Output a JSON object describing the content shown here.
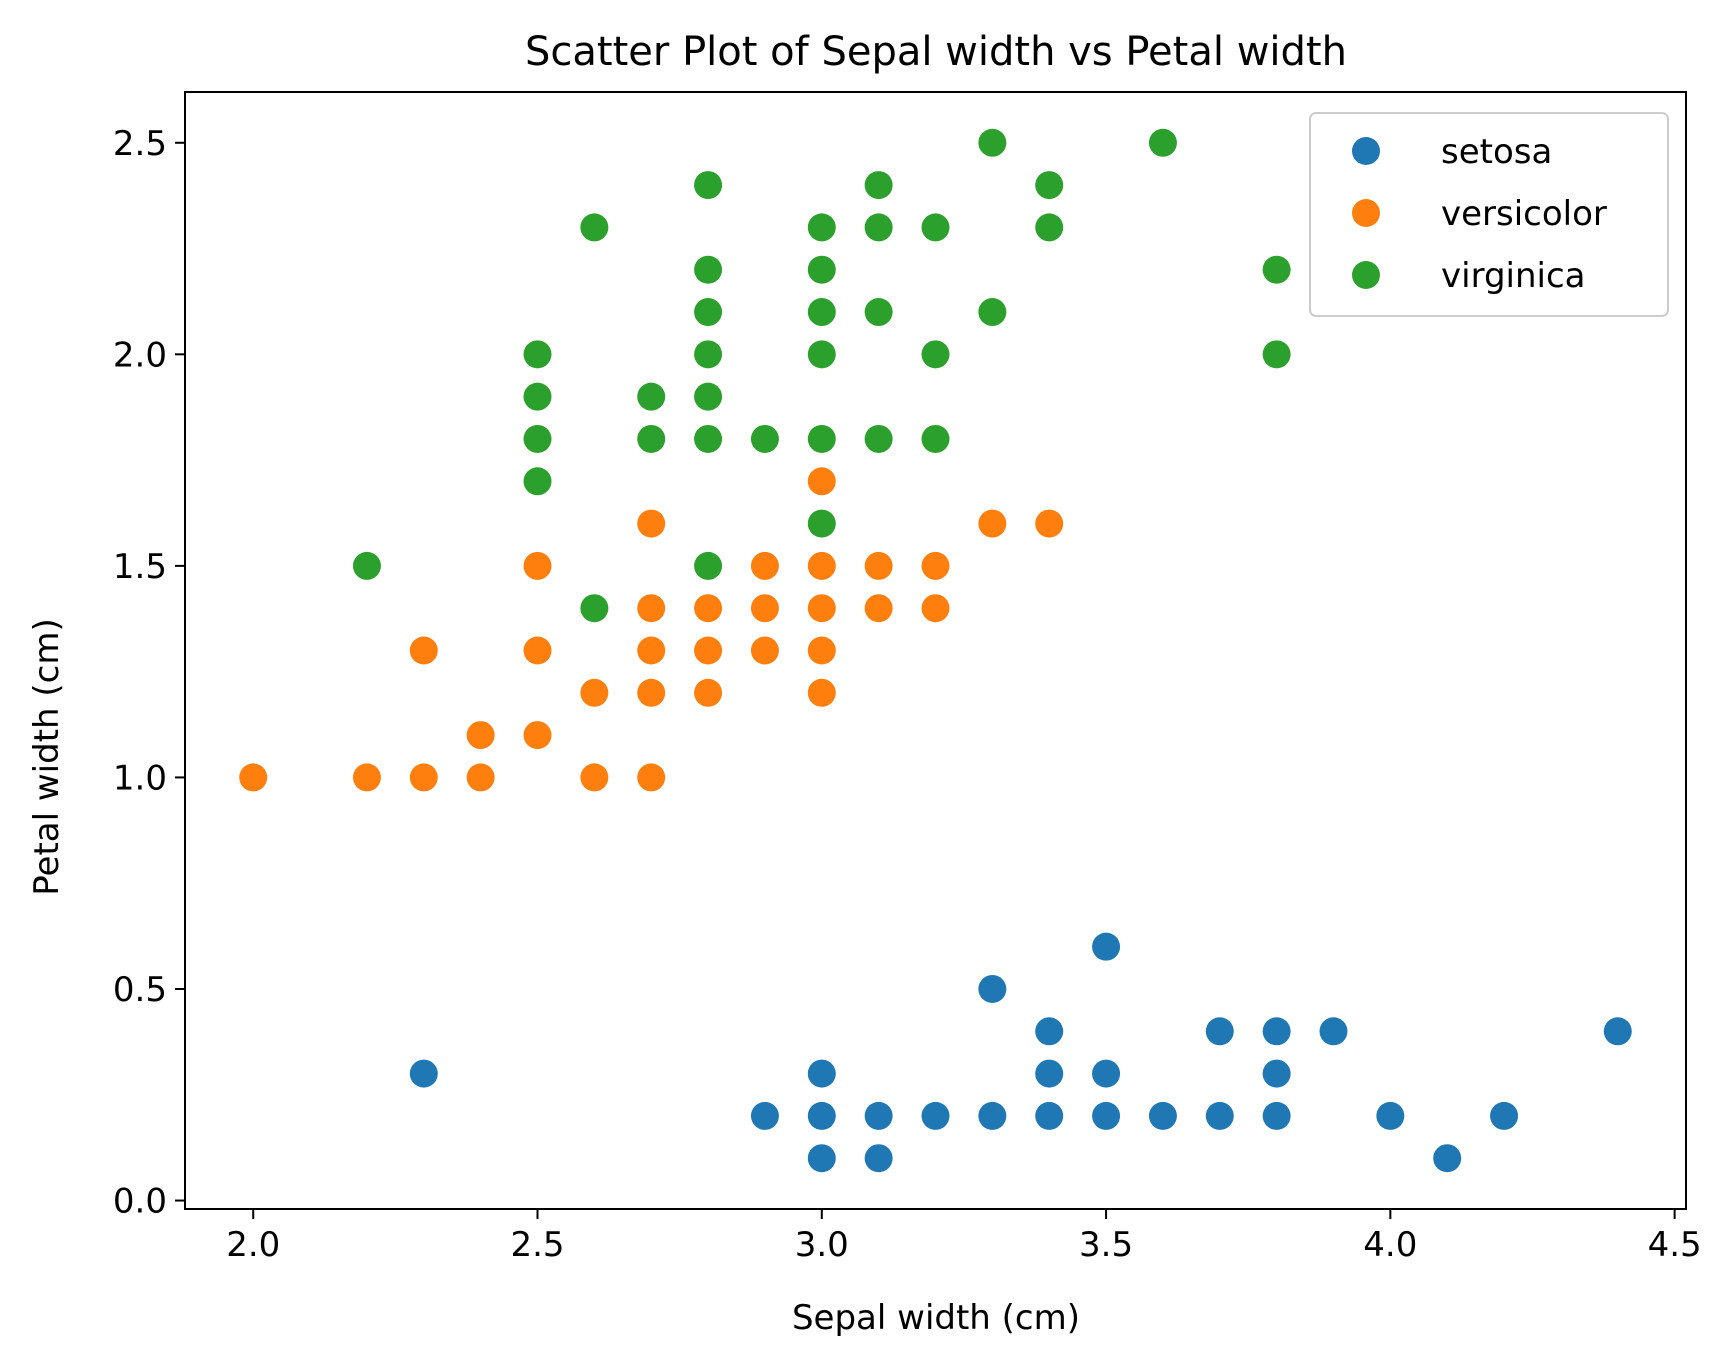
{
  "chart_data": {
    "type": "scatter",
    "title": "Scatter Plot of Sepal width vs Petal width",
    "xlabel": "Sepal width (cm)",
    "ylabel": "Petal width (cm)",
    "xlim": [
      1.88,
      4.52
    ],
    "ylim": [
      -0.02,
      2.62
    ],
    "x_ticks": [
      2.0,
      2.5,
      3.0,
      3.5,
      4.0,
      4.5
    ],
    "x_tick_labels": [
      "2.0",
      "2.5",
      "3.0",
      "3.5",
      "4.0",
      "4.5"
    ],
    "y_ticks": [
      0.0,
      0.5,
      1.0,
      1.5,
      2.0,
      2.5
    ],
    "y_tick_labels": [
      "0.0",
      "0.5",
      "1.0",
      "1.5",
      "2.0",
      "2.5"
    ],
    "grid": false,
    "legend_position": "top-right",
    "series": [
      {
        "name": "setosa",
        "color": "#1f77b4",
        "points": [
          [
            2.3,
            0.3
          ],
          [
            2.9,
            0.2
          ],
          [
            3.0,
            0.1
          ],
          [
            3.0,
            0.2
          ],
          [
            3.0,
            0.3
          ],
          [
            3.1,
            0.1
          ],
          [
            3.1,
            0.2
          ],
          [
            3.2,
            0.2
          ],
          [
            3.3,
            0.2
          ],
          [
            3.3,
            0.5
          ],
          [
            3.4,
            0.2
          ],
          [
            3.4,
            0.3
          ],
          [
            3.4,
            0.4
          ],
          [
            3.5,
            0.2
          ],
          [
            3.5,
            0.3
          ],
          [
            3.5,
            0.6
          ],
          [
            3.6,
            0.2
          ],
          [
            3.7,
            0.2
          ],
          [
            3.7,
            0.4
          ],
          [
            3.8,
            0.2
          ],
          [
            3.8,
            0.3
          ],
          [
            3.8,
            0.4
          ],
          [
            3.9,
            0.4
          ],
          [
            4.0,
            0.2
          ],
          [
            4.1,
            0.1
          ],
          [
            4.2,
            0.2
          ],
          [
            4.4,
            0.4
          ]
        ]
      },
      {
        "name": "versicolor",
        "color": "#ff7f0e",
        "points": [
          [
            2.0,
            1.0
          ],
          [
            2.2,
            1.0
          ],
          [
            2.3,
            1.0
          ],
          [
            2.3,
            1.3
          ],
          [
            2.4,
            1.0
          ],
          [
            2.4,
            1.1
          ],
          [
            2.5,
            1.1
          ],
          [
            2.5,
            1.3
          ],
          [
            2.5,
            1.5
          ],
          [
            2.6,
            1.0
          ],
          [
            2.6,
            1.2
          ],
          [
            2.7,
            1.0
          ],
          [
            2.7,
            1.2
          ],
          [
            2.7,
            1.3
          ],
          [
            2.7,
            1.4
          ],
          [
            2.7,
            1.6
          ],
          [
            2.8,
            1.2
          ],
          [
            2.8,
            1.3
          ],
          [
            2.8,
            1.4
          ],
          [
            2.9,
            1.3
          ],
          [
            2.9,
            1.4
          ],
          [
            2.9,
            1.5
          ],
          [
            3.0,
            1.2
          ],
          [
            3.0,
            1.3
          ],
          [
            3.0,
            1.4
          ],
          [
            3.0,
            1.5
          ],
          [
            3.0,
            1.7
          ],
          [
            3.1,
            1.4
          ],
          [
            3.1,
            1.5
          ],
          [
            3.2,
            1.4
          ],
          [
            3.2,
            1.5
          ],
          [
            3.3,
            1.6
          ],
          [
            3.4,
            1.6
          ]
        ]
      },
      {
        "name": "virginica",
        "color": "#2ca02c",
        "points": [
          [
            2.2,
            1.5
          ],
          [
            2.5,
            1.7
          ],
          [
            2.5,
            1.8
          ],
          [
            2.5,
            1.9
          ],
          [
            2.5,
            2.0
          ],
          [
            2.6,
            1.4
          ],
          [
            2.6,
            2.3
          ],
          [
            2.7,
            1.8
          ],
          [
            2.7,
            1.9
          ],
          [
            2.8,
            1.5
          ],
          [
            2.8,
            1.8
          ],
          [
            2.8,
            1.9
          ],
          [
            2.8,
            2.0
          ],
          [
            2.8,
            2.1
          ],
          [
            2.8,
            2.2
          ],
          [
            2.8,
            2.4
          ],
          [
            2.9,
            1.8
          ],
          [
            3.0,
            1.6
          ],
          [
            3.0,
            1.8
          ],
          [
            3.0,
            2.0
          ],
          [
            3.0,
            2.1
          ],
          [
            3.0,
            2.2
          ],
          [
            3.0,
            2.3
          ],
          [
            3.1,
            1.8
          ],
          [
            3.1,
            2.1
          ],
          [
            3.1,
            2.3
          ],
          [
            3.1,
            2.4
          ],
          [
            3.2,
            1.8
          ],
          [
            3.2,
            2.0
          ],
          [
            3.2,
            2.3
          ],
          [
            3.3,
            2.1
          ],
          [
            3.3,
            2.5
          ],
          [
            3.4,
            2.3
          ],
          [
            3.4,
            2.4
          ],
          [
            3.6,
            2.5
          ],
          [
            3.8,
            2.0
          ],
          [
            3.8,
            2.2
          ]
        ]
      }
    ]
  }
}
